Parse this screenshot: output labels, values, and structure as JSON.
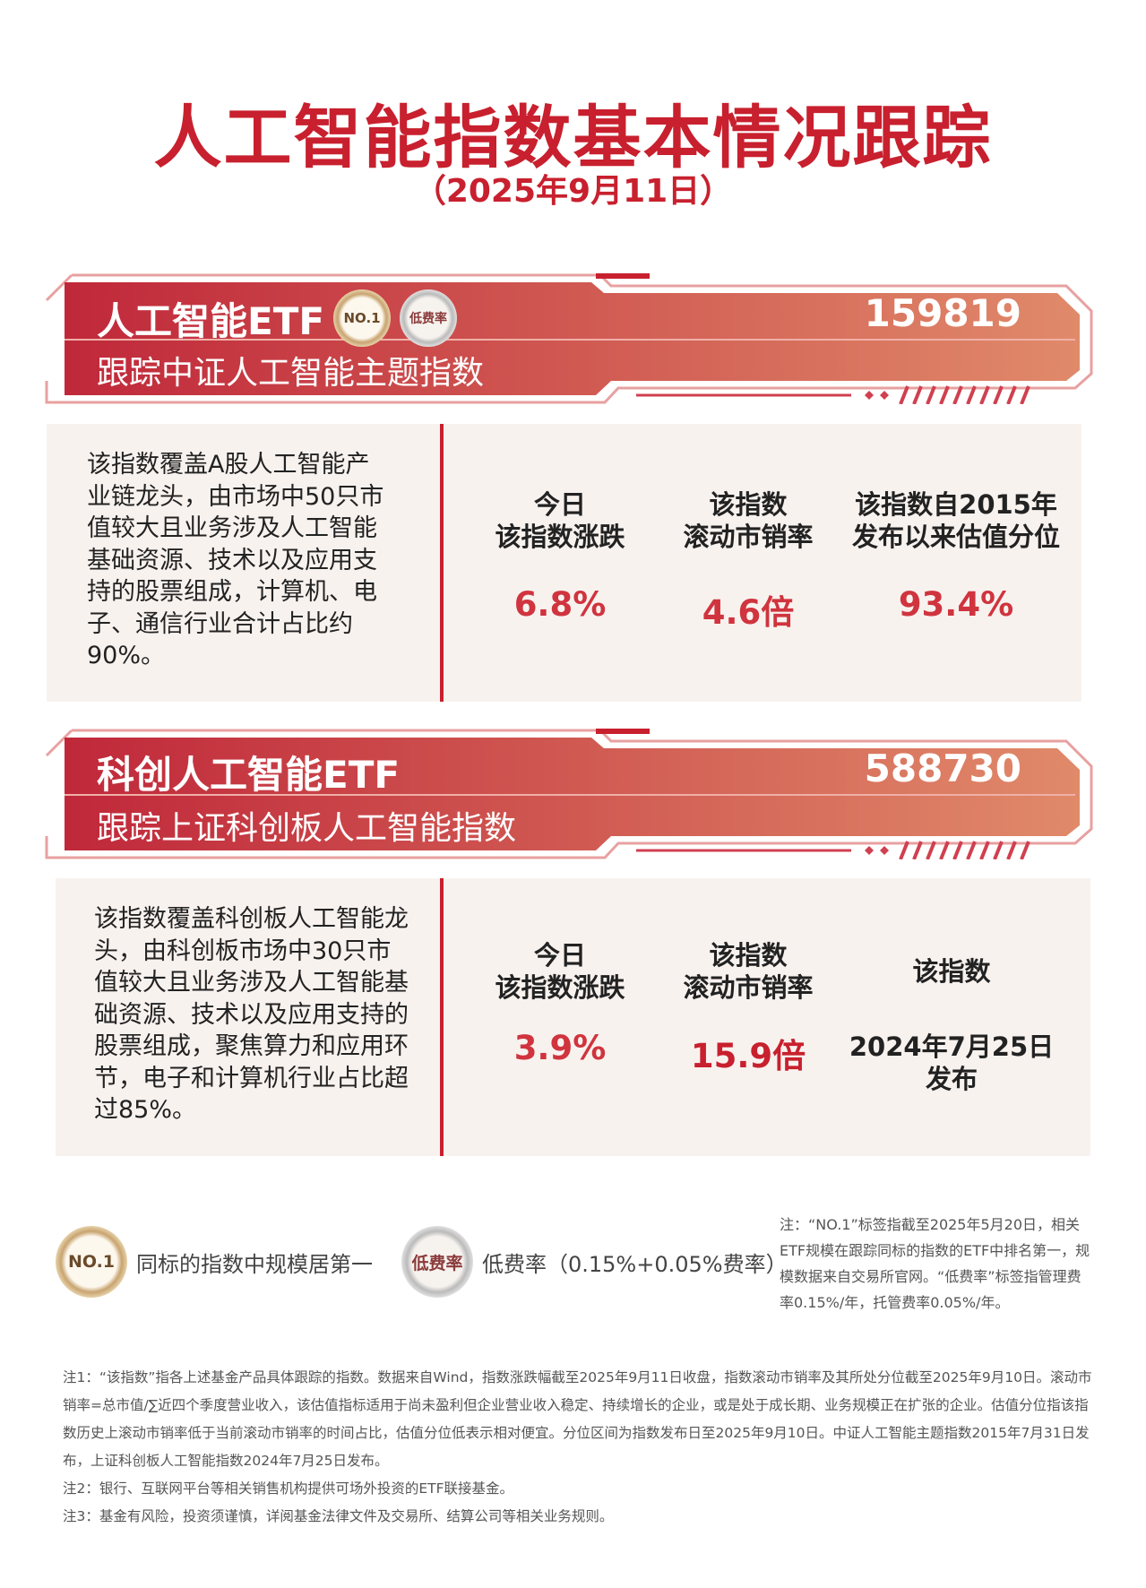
{
  "header": {
    "title": "人工智能指数基本情况跟踪",
    "date": "（2025年9月11日）"
  },
  "colors": {
    "brand_red": "#c8202e",
    "value_red": "#d0343e",
    "banner_start": "#c0283a",
    "banner_end": "#e08a6a",
    "box_bg": "#f8f2ef"
  },
  "funds": [
    {
      "name": "人工智能ETF",
      "code": "159819",
      "tracking": "跟踪中证人工智能主题指数",
      "badges": [
        "NO.1",
        "低费率"
      ],
      "description": "该指数覆盖A股人工智能产业链龙头，由市场中50只市值较大且业务涉及人工智能基础资源、技术以及应用支持的股票组成，计算机、电子、通信行业合计占比约90%。",
      "metrics": [
        {
          "label1": "今日",
          "label2": "该指数涨跌",
          "value": "6.8%"
        },
        {
          "label1": "该指数",
          "label2": "滚动市销率",
          "value": "4.6倍"
        },
        {
          "label1": "该指数自2015年",
          "label2": "发布以来估值分位",
          "value": "93.4%"
        }
      ]
    },
    {
      "name": "科创人工智能ETF",
      "code": "588730",
      "tracking": "跟踪上证科创板人工智能指数",
      "badges": [],
      "description": "该指数覆盖科创板人工智能龙头，由科创板市场中30只市值较大且业务涉及人工智能基础资源、技术以及应用支持的股票组成，聚焦算力和应用环节，电子和计算机行业占比超过85%。",
      "metrics": [
        {
          "label1": "今日",
          "label2": "该指数涨跌",
          "value": "3.9%"
        },
        {
          "label1": "该指数",
          "label2": "滚动市销率",
          "value": "15.9倍"
        },
        {
          "label1": "该指数",
          "label2": "",
          "value": "2024年7月25日",
          "value2": "发布"
        }
      ]
    }
  ],
  "legend": {
    "no1_badge": "NO.1",
    "no1_text": "同标的指数中规模居第一",
    "fee_badge": "低费率",
    "fee_text": "低费率（0.15%+0.05%费率）"
  },
  "side_note": "注：“NO.1”标签指截至2025年5月20日，相关ETF规模在跟踪同标的指数的ETF中排名第一，规模数据来自交易所官网。“低费率”标签指管理费率0.15%/年，托管费率0.05%/年。",
  "notes": [
    "注1：“该指数”指各上述基金产品具体跟踪的指数。数据来自Wind，指数涨跌幅截至2025年9月11日收盘，指数滚动市销率及其所处分位截至2025年9月10日。滚动市销率=总市值/∑近四个季度营业收入，该估值指标适用于尚未盈利但企业营业收入稳定、持续增长的企业，或是处于成长期、业务规模正在扩张的企业。估值分位指该指数历史上滚动市销率低于当前滚动市销率的时间占比，估值分位低表示相对便宜。分位区间为指数发布日至2025年9月10日。中证人工智能主题指数2015年7月31日发布，上证科创板人工智能指数2024年7月25日发布。",
    "注2：银行、互联网平台等相关销售机构提供可场外投资的ETF联接基金。",
    "注3：基金有风险，投资须谨慎，详阅基金法律文件及交易所、结算公司等相关业务规则。"
  ]
}
